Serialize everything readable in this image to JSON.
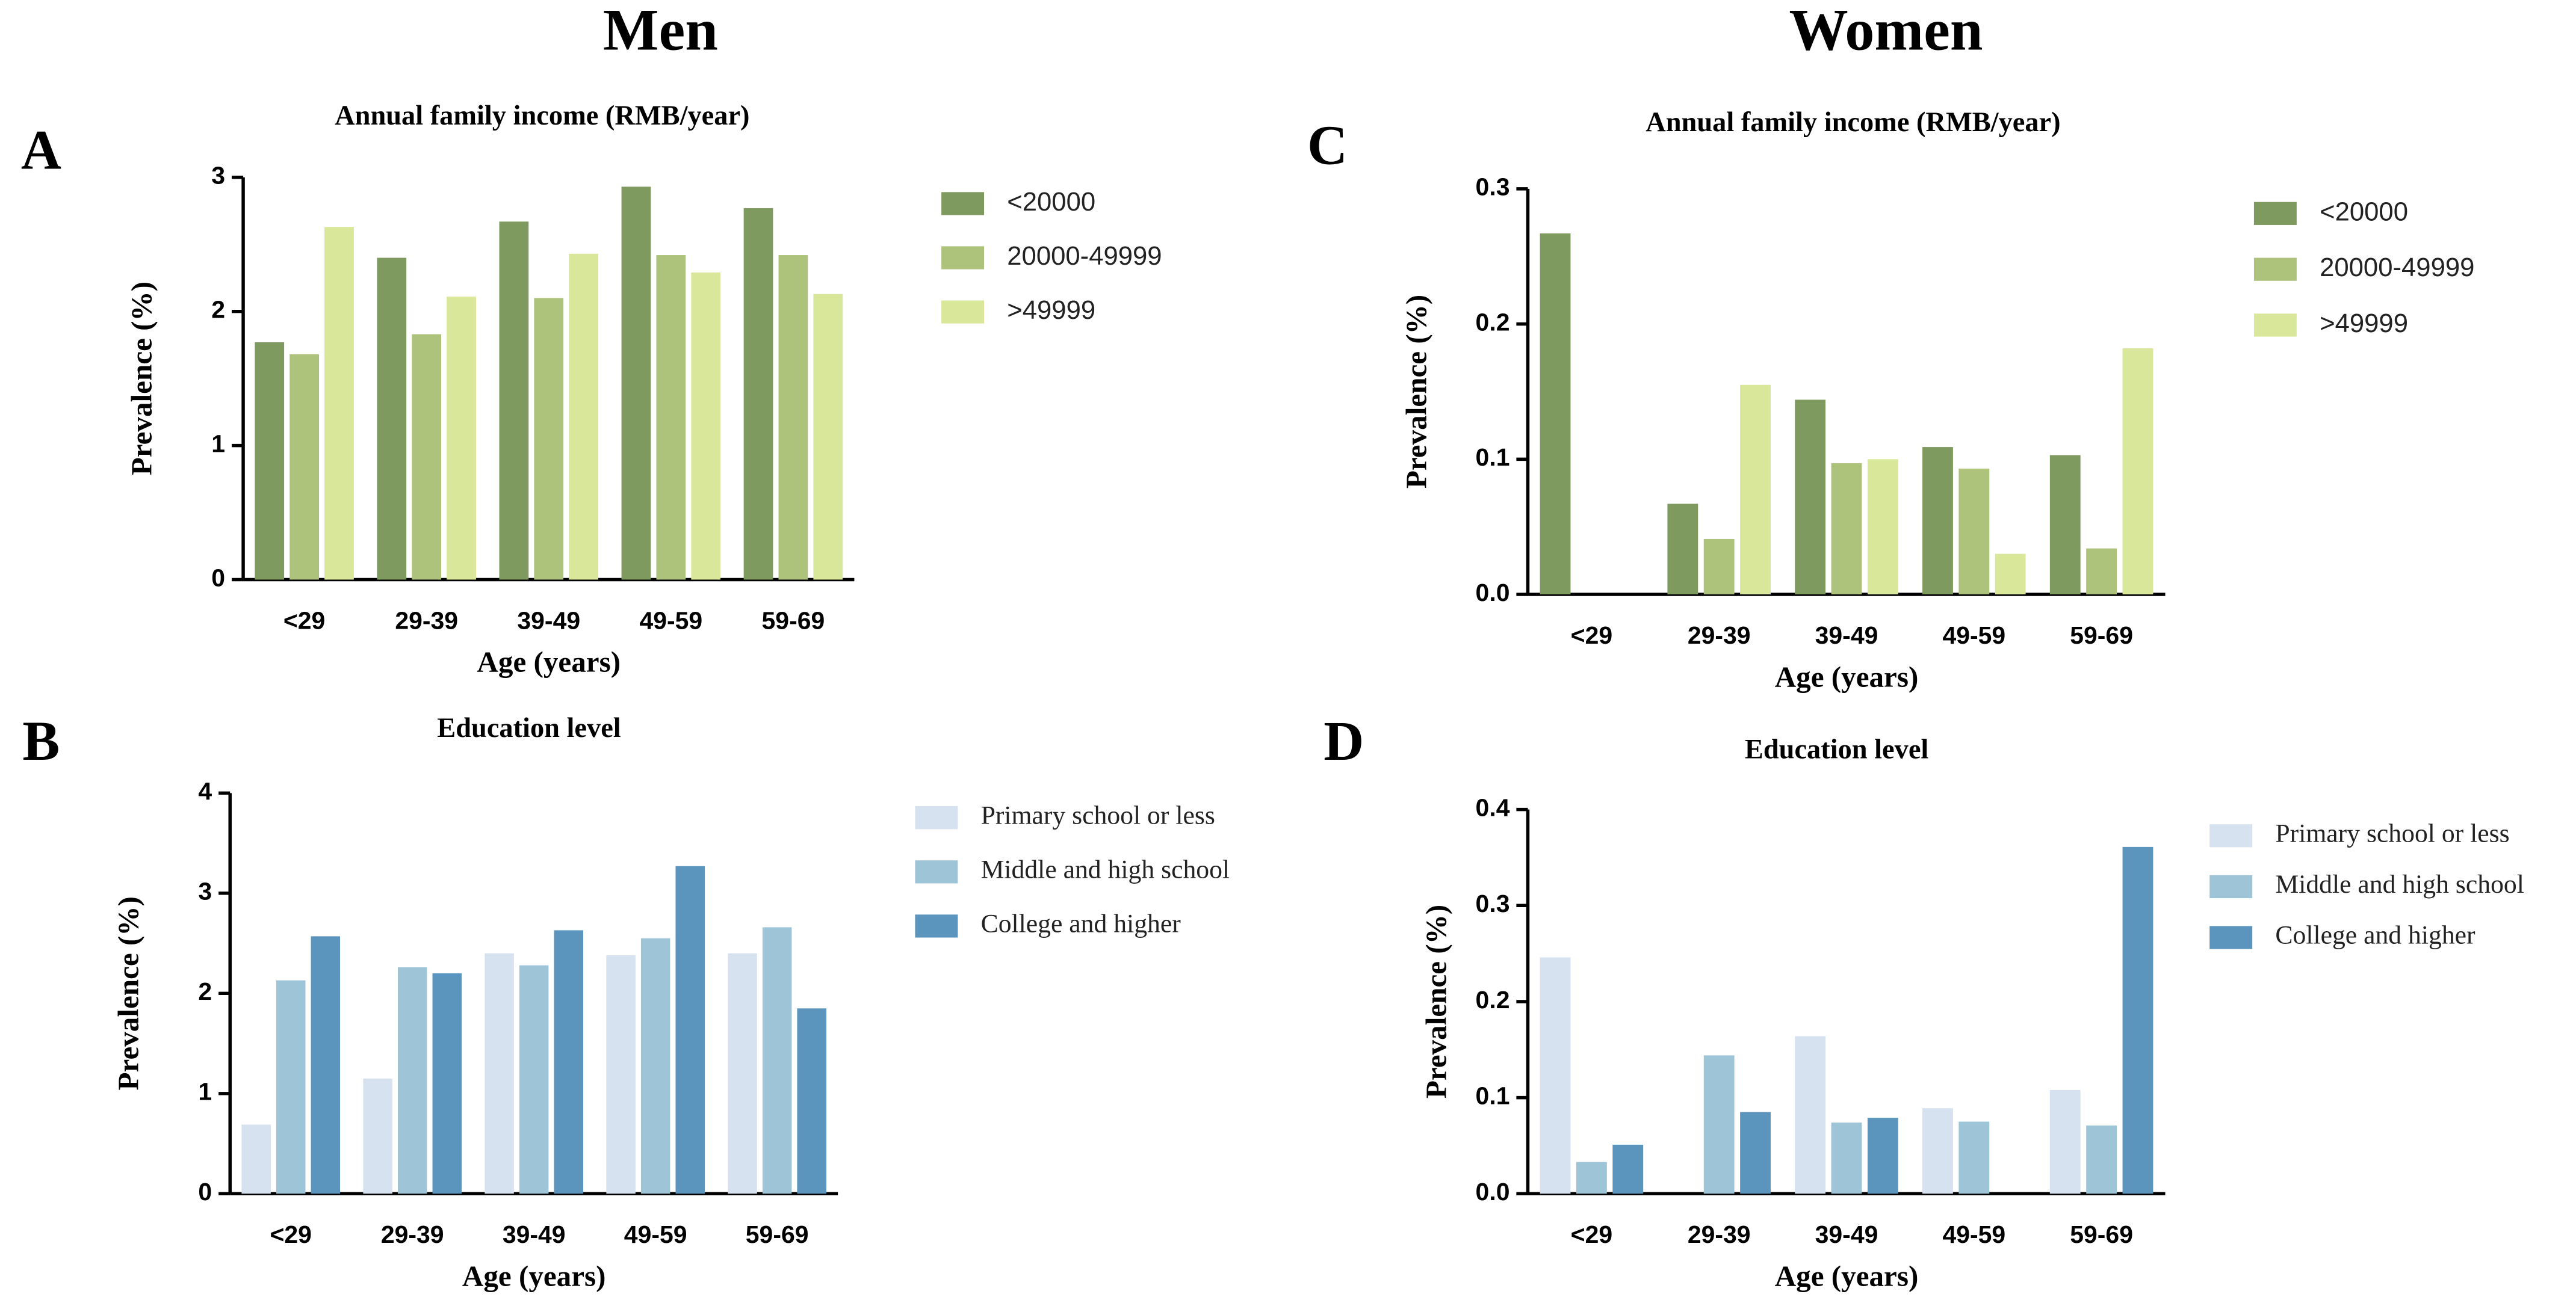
{
  "column_titles": [
    "Men",
    "Women"
  ],
  "chart_data": [
    {
      "type": "bar",
      "panel": "A",
      "title": "Annual family income (RMB/year)",
      "x_label": "Age (years)",
      "y_label": "Prevalence (%)",
      "categories": [
        "<29",
        "29-39",
        "39-49",
        "49-59",
        "59-69"
      ],
      "series": [
        {
          "name": "<20000",
          "color": "#7f9a5e",
          "values": [
            1.77,
            2.4,
            2.67,
            2.93,
            2.77
          ]
        },
        {
          "name": "20000-49999",
          "color": "#adc27a",
          "values": [
            1.68,
            1.83,
            2.1,
            2.42,
            2.42
          ]
        },
        {
          "name": ">49999",
          "color": "#d9e79a",
          "values": [
            2.63,
            2.11,
            2.43,
            2.29,
            2.13
          ]
        }
      ],
      "ylim": [
        0,
        3
      ],
      "yticks": [
        0,
        1,
        2,
        3
      ]
    },
    {
      "type": "bar",
      "panel": "B",
      "title": "Education level",
      "x_label": "Age (years)",
      "y_label": "Prevalence (%)",
      "categories": [
        "<29",
        "29-39",
        "39-49",
        "49-59",
        "59-69"
      ],
      "series": [
        {
          "name": "Primary school or less",
          "color": "#d6e2ef",
          "values": [
            0.69,
            1.15,
            2.4,
            2.38,
            2.4
          ]
        },
        {
          "name": "Middle and high school",
          "color": "#9ec4d8",
          "values": [
            2.13,
            2.26,
            2.28,
            2.55,
            2.66
          ]
        },
        {
          "name": "College and higher",
          "color": "#5b95bd",
          "values": [
            2.57,
            2.2,
            2.63,
            3.27,
            1.85
          ]
        }
      ],
      "ylim": [
        0,
        4
      ],
      "yticks": [
        0,
        1,
        2,
        3,
        4
      ]
    },
    {
      "type": "bar",
      "panel": "C",
      "title": "Annual family income (RMB/year)",
      "x_label": "Age (years)",
      "y_label": "Prevalence (%)",
      "categories": [
        "<29",
        "29-39",
        "39-49",
        "49-59",
        "59-69"
      ],
      "series": [
        {
          "name": "<20000",
          "color": "#7f9a5e",
          "values": [
            0.267,
            0.067,
            0.144,
            0.109,
            0.103
          ]
        },
        {
          "name": "20000-49999",
          "color": "#adc27a",
          "values": [
            0,
            0.041,
            0.097,
            0.093,
            0.034
          ]
        },
        {
          "name": ">49999",
          "color": "#d9e79a",
          "values": [
            0,
            0.155,
            0.1,
            0.03,
            0.182
          ]
        }
      ],
      "ylim": [
        0,
        0.3
      ],
      "yticks": [
        {
          "value": 0,
          "label": "0.0"
        },
        0.1,
        0.2,
        0.3
      ]
    },
    {
      "type": "bar",
      "panel": "D",
      "title": "Education level",
      "x_label": "Age (years)",
      "y_label": "Prevalence (%)",
      "categories": [
        "<29",
        "29-39",
        "39-49",
        "49-59",
        "59-69"
      ],
      "series": [
        {
          "name": "Primary school or less",
          "color": "#d6e2ef",
          "values": [
            0.246,
            0,
            0.164,
            0.089,
            0.108
          ]
        },
        {
          "name": "Middle and high school",
          "color": "#9ec4d8",
          "values": [
            0.033,
            0.144,
            0.074,
            0.075,
            0.071
          ]
        },
        {
          "name": "College and higher",
          "color": "#5b95bd",
          "values": [
            0.051,
            0.085,
            0.079,
            0,
            0.361
          ]
        }
      ],
      "ylim": [
        0,
        0.4
      ],
      "yticks": [
        {
          "value": 0,
          "label": "0.0"
        },
        0.1,
        0.2,
        0.3,
        0.4
      ]
    }
  ]
}
